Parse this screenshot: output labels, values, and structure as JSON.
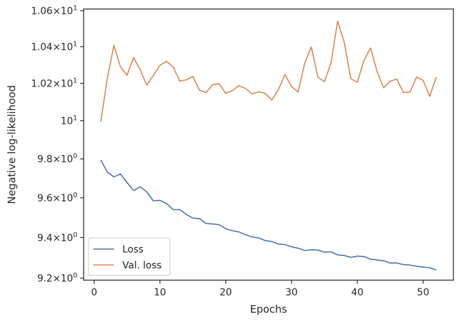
{
  "chart_data": {
    "type": "line",
    "xlabel": "Epochs",
    "ylabel": "Negative log-likelihood",
    "xlim": [
      -1.6,
      54.6
    ],
    "ylim": [
      9.19,
      10.61
    ],
    "y_scale": "log",
    "grid": false,
    "legend_position": "lower-left",
    "x_ticks": [
      {
        "value": 0,
        "label": "0"
      },
      {
        "value": 10,
        "label": "10"
      },
      {
        "value": 20,
        "label": "20"
      },
      {
        "value": 30,
        "label": "30"
      },
      {
        "value": 40,
        "label": "40"
      },
      {
        "value": 50,
        "label": "50"
      }
    ],
    "y_ticks": [
      {
        "value": 9.2,
        "mantissa": "9.2",
        "label": "9.2 × 10^0"
      },
      {
        "value": 9.4,
        "mantissa": "9.4",
        "label": "9.4 × 10^0"
      },
      {
        "value": 9.6,
        "mantissa": "9.6",
        "label": "9.6 × 10^0"
      },
      {
        "value": 9.8,
        "mantissa": "9.8",
        "label": "9.8 × 10^0"
      },
      {
        "value": 10.0,
        "mantissa": "",
        "label": "10^1"
      },
      {
        "value": 10.2,
        "mantissa": "1.02",
        "label": "1.02 × 10^1"
      },
      {
        "value": 10.4,
        "mantissa": "1.04",
        "label": "1.04 × 10^1"
      },
      {
        "value": 10.6,
        "mantissa": "1.06",
        "label": "1.06 × 10^1"
      }
    ],
    "x": [
      1,
      2,
      3,
      4,
      5,
      6,
      7,
      8,
      9,
      10,
      11,
      12,
      13,
      14,
      15,
      16,
      17,
      18,
      19,
      20,
      21,
      22,
      23,
      24,
      25,
      26,
      27,
      28,
      29,
      30,
      31,
      32,
      33,
      34,
      35,
      36,
      37,
      38,
      39,
      40,
      41,
      42,
      43,
      44,
      45,
      46,
      47,
      48,
      49,
      50,
      51,
      52
    ],
    "series": [
      {
        "name": "Loss",
        "color": "#4c72b0",
        "values": [
          9.794,
          9.732,
          9.707,
          9.722,
          9.678,
          9.637,
          9.656,
          9.63,
          9.584,
          9.587,
          9.571,
          9.54,
          9.54,
          9.516,
          9.497,
          9.495,
          9.47,
          9.468,
          9.464,
          9.444,
          9.434,
          9.428,
          9.414,
          9.403,
          9.398,
          9.385,
          9.38,
          9.368,
          9.365,
          9.354,
          9.347,
          9.336,
          9.339,
          9.338,
          9.327,
          9.329,
          9.314,
          9.311,
          9.302,
          9.308,
          9.306,
          9.293,
          9.289,
          9.285,
          9.274,
          9.274,
          9.266,
          9.264,
          9.258,
          9.254,
          9.251,
          9.24
        ]
      },
      {
        "name": "Val. loss",
        "color": "#dd8452",
        "values": [
          9.995,
          10.228,
          10.408,
          10.289,
          10.244,
          10.341,
          10.273,
          10.19,
          10.244,
          10.298,
          10.32,
          10.289,
          10.212,
          10.219,
          10.238,
          10.163,
          10.151,
          10.193,
          10.198,
          10.146,
          10.161,
          10.188,
          10.173,
          10.143,
          10.155,
          10.146,
          10.11,
          10.166,
          10.248,
          10.183,
          10.154,
          10.31,
          10.399,
          10.234,
          10.209,
          10.31,
          10.542,
          10.426,
          10.226,
          10.206,
          10.323,
          10.393,
          10.264,
          10.176,
          10.212,
          10.223,
          10.151,
          10.153,
          10.234,
          10.216,
          10.13,
          10.234
        ]
      }
    ]
  }
}
